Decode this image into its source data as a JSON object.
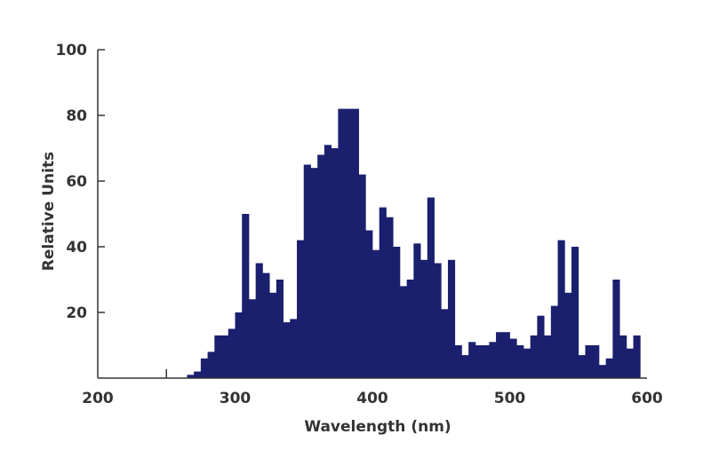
{
  "chart_data": {
    "type": "bar",
    "xlabel": "Wavelength (nm)",
    "ylabel": "Relative Units",
    "xlim": [
      200,
      600
    ],
    "ylim": [
      0,
      100
    ],
    "x_ticks": [
      {
        "value": 200,
        "label": "200"
      },
      {
        "value": 300,
        "label": "300"
      },
      {
        "value": 400,
        "label": "400"
      },
      {
        "value": 500,
        "label": "500"
      },
      {
        "value": 600,
        "label": "600"
      }
    ],
    "y_ticks": [
      {
        "value": 20,
        "label": "20"
      },
      {
        "value": 40,
        "label": "40"
      },
      {
        "value": 60,
        "label": "60"
      },
      {
        "value": 80,
        "label": "80"
      },
      {
        "value": 100,
        "label": "100"
      }
    ],
    "grid": false,
    "legend": "none",
    "bar_color": "#1a1f6e",
    "bin_width_nm": 5,
    "series": [
      {
        "values": [
          [
            265,
            1
          ],
          [
            270,
            2
          ],
          [
            275,
            6
          ],
          [
            280,
            8
          ],
          [
            285,
            13
          ],
          [
            290,
            13
          ],
          [
            295,
            15
          ],
          [
            300,
            20
          ],
          [
            305,
            50
          ],
          [
            310,
            24
          ],
          [
            315,
            35
          ],
          [
            320,
            32
          ],
          [
            325,
            26
          ],
          [
            330,
            30
          ],
          [
            335,
            17
          ],
          [
            340,
            18
          ],
          [
            345,
            42
          ],
          [
            350,
            65
          ],
          [
            355,
            64
          ],
          [
            360,
            68
          ],
          [
            365,
            71
          ],
          [
            370,
            70
          ],
          [
            375,
            82
          ],
          [
            380,
            82
          ],
          [
            385,
            82
          ],
          [
            390,
            62
          ],
          [
            395,
            45
          ],
          [
            400,
            39
          ],
          [
            405,
            52
          ],
          [
            410,
            49
          ],
          [
            415,
            40
          ],
          [
            420,
            28
          ],
          [
            425,
            30
          ],
          [
            430,
            41
          ],
          [
            435,
            36
          ],
          [
            440,
            55
          ],
          [
            445,
            35
          ],
          [
            450,
            21
          ],
          [
            455,
            36
          ],
          [
            460,
            10
          ],
          [
            465,
            7
          ],
          [
            470,
            11
          ],
          [
            475,
            10
          ],
          [
            480,
            10
          ],
          [
            485,
            11
          ],
          [
            490,
            14
          ],
          [
            495,
            14
          ],
          [
            500,
            12
          ],
          [
            505,
            10
          ],
          [
            510,
            9
          ],
          [
            515,
            13
          ],
          [
            520,
            19
          ],
          [
            525,
            13
          ],
          [
            530,
            22
          ],
          [
            535,
            42
          ],
          [
            540,
            26
          ],
          [
            545,
            40
          ],
          [
            550,
            7
          ],
          [
            555,
            10
          ],
          [
            560,
            10
          ],
          [
            565,
            4
          ],
          [
            570,
            6
          ],
          [
            575,
            30
          ],
          [
            580,
            13
          ],
          [
            585,
            9
          ],
          [
            590,
            13
          ]
        ]
      }
    ]
  }
}
